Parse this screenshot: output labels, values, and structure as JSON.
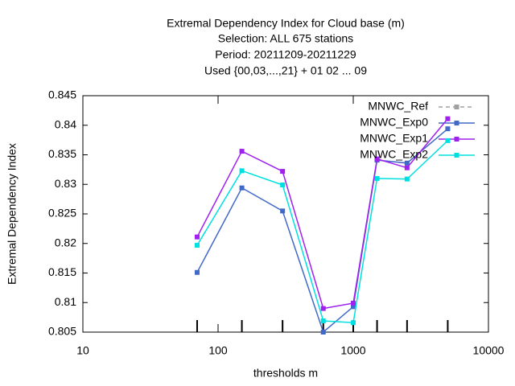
{
  "chart_data": {
    "type": "line",
    "title": "Extremal Dependency Index  for Cloud base (m)",
    "subtitle": [
      "Selection: ALL    675 stations",
      "Period: 20211209-20211229",
      "Used {00,03,...,21} + 01 02 ... 09"
    ],
    "x_label": "thresholds m",
    "y_label": "Extremal Dependency Index",
    "x_scale": "log",
    "x": [
      70,
      150,
      300,
      600,
      1000,
      1500,
      2500,
      5000
    ],
    "xlim": [
      10,
      10000
    ],
    "xticks": [
      10,
      100,
      1000,
      10000
    ],
    "ylim": [
      0.805,
      0.845
    ],
    "yticks": [
      0.805,
      0.81,
      0.815,
      0.82,
      0.825,
      0.83,
      0.835,
      0.84,
      0.845
    ],
    "legend": "upper right",
    "series": [
      {
        "name": "MNWC_Ref",
        "color": "#a0a0a0",
        "dashed": true,
        "values": [
          null,
          null,
          null,
          null,
          null,
          null,
          null,
          null
        ]
      },
      {
        "name": "MNWC_Exp0",
        "color": "#4169c8",
        "values": [
          0.8151,
          0.8294,
          0.8255,
          0.805,
          0.8093,
          0.8341,
          0.8336,
          0.8394
        ]
      },
      {
        "name": "MNWC_Exp1",
        "color": "#a020f0",
        "values": [
          0.8211,
          0.8356,
          0.8322,
          0.809,
          0.8099,
          0.8343,
          0.8328,
          0.8411
        ]
      },
      {
        "name": "MNWC_Exp2",
        "color": "#00e0e0",
        "values": [
          0.8197,
          0.8323,
          0.8299,
          0.8069,
          0.8066,
          0.831,
          0.8309,
          0.8374
        ]
      }
    ]
  }
}
